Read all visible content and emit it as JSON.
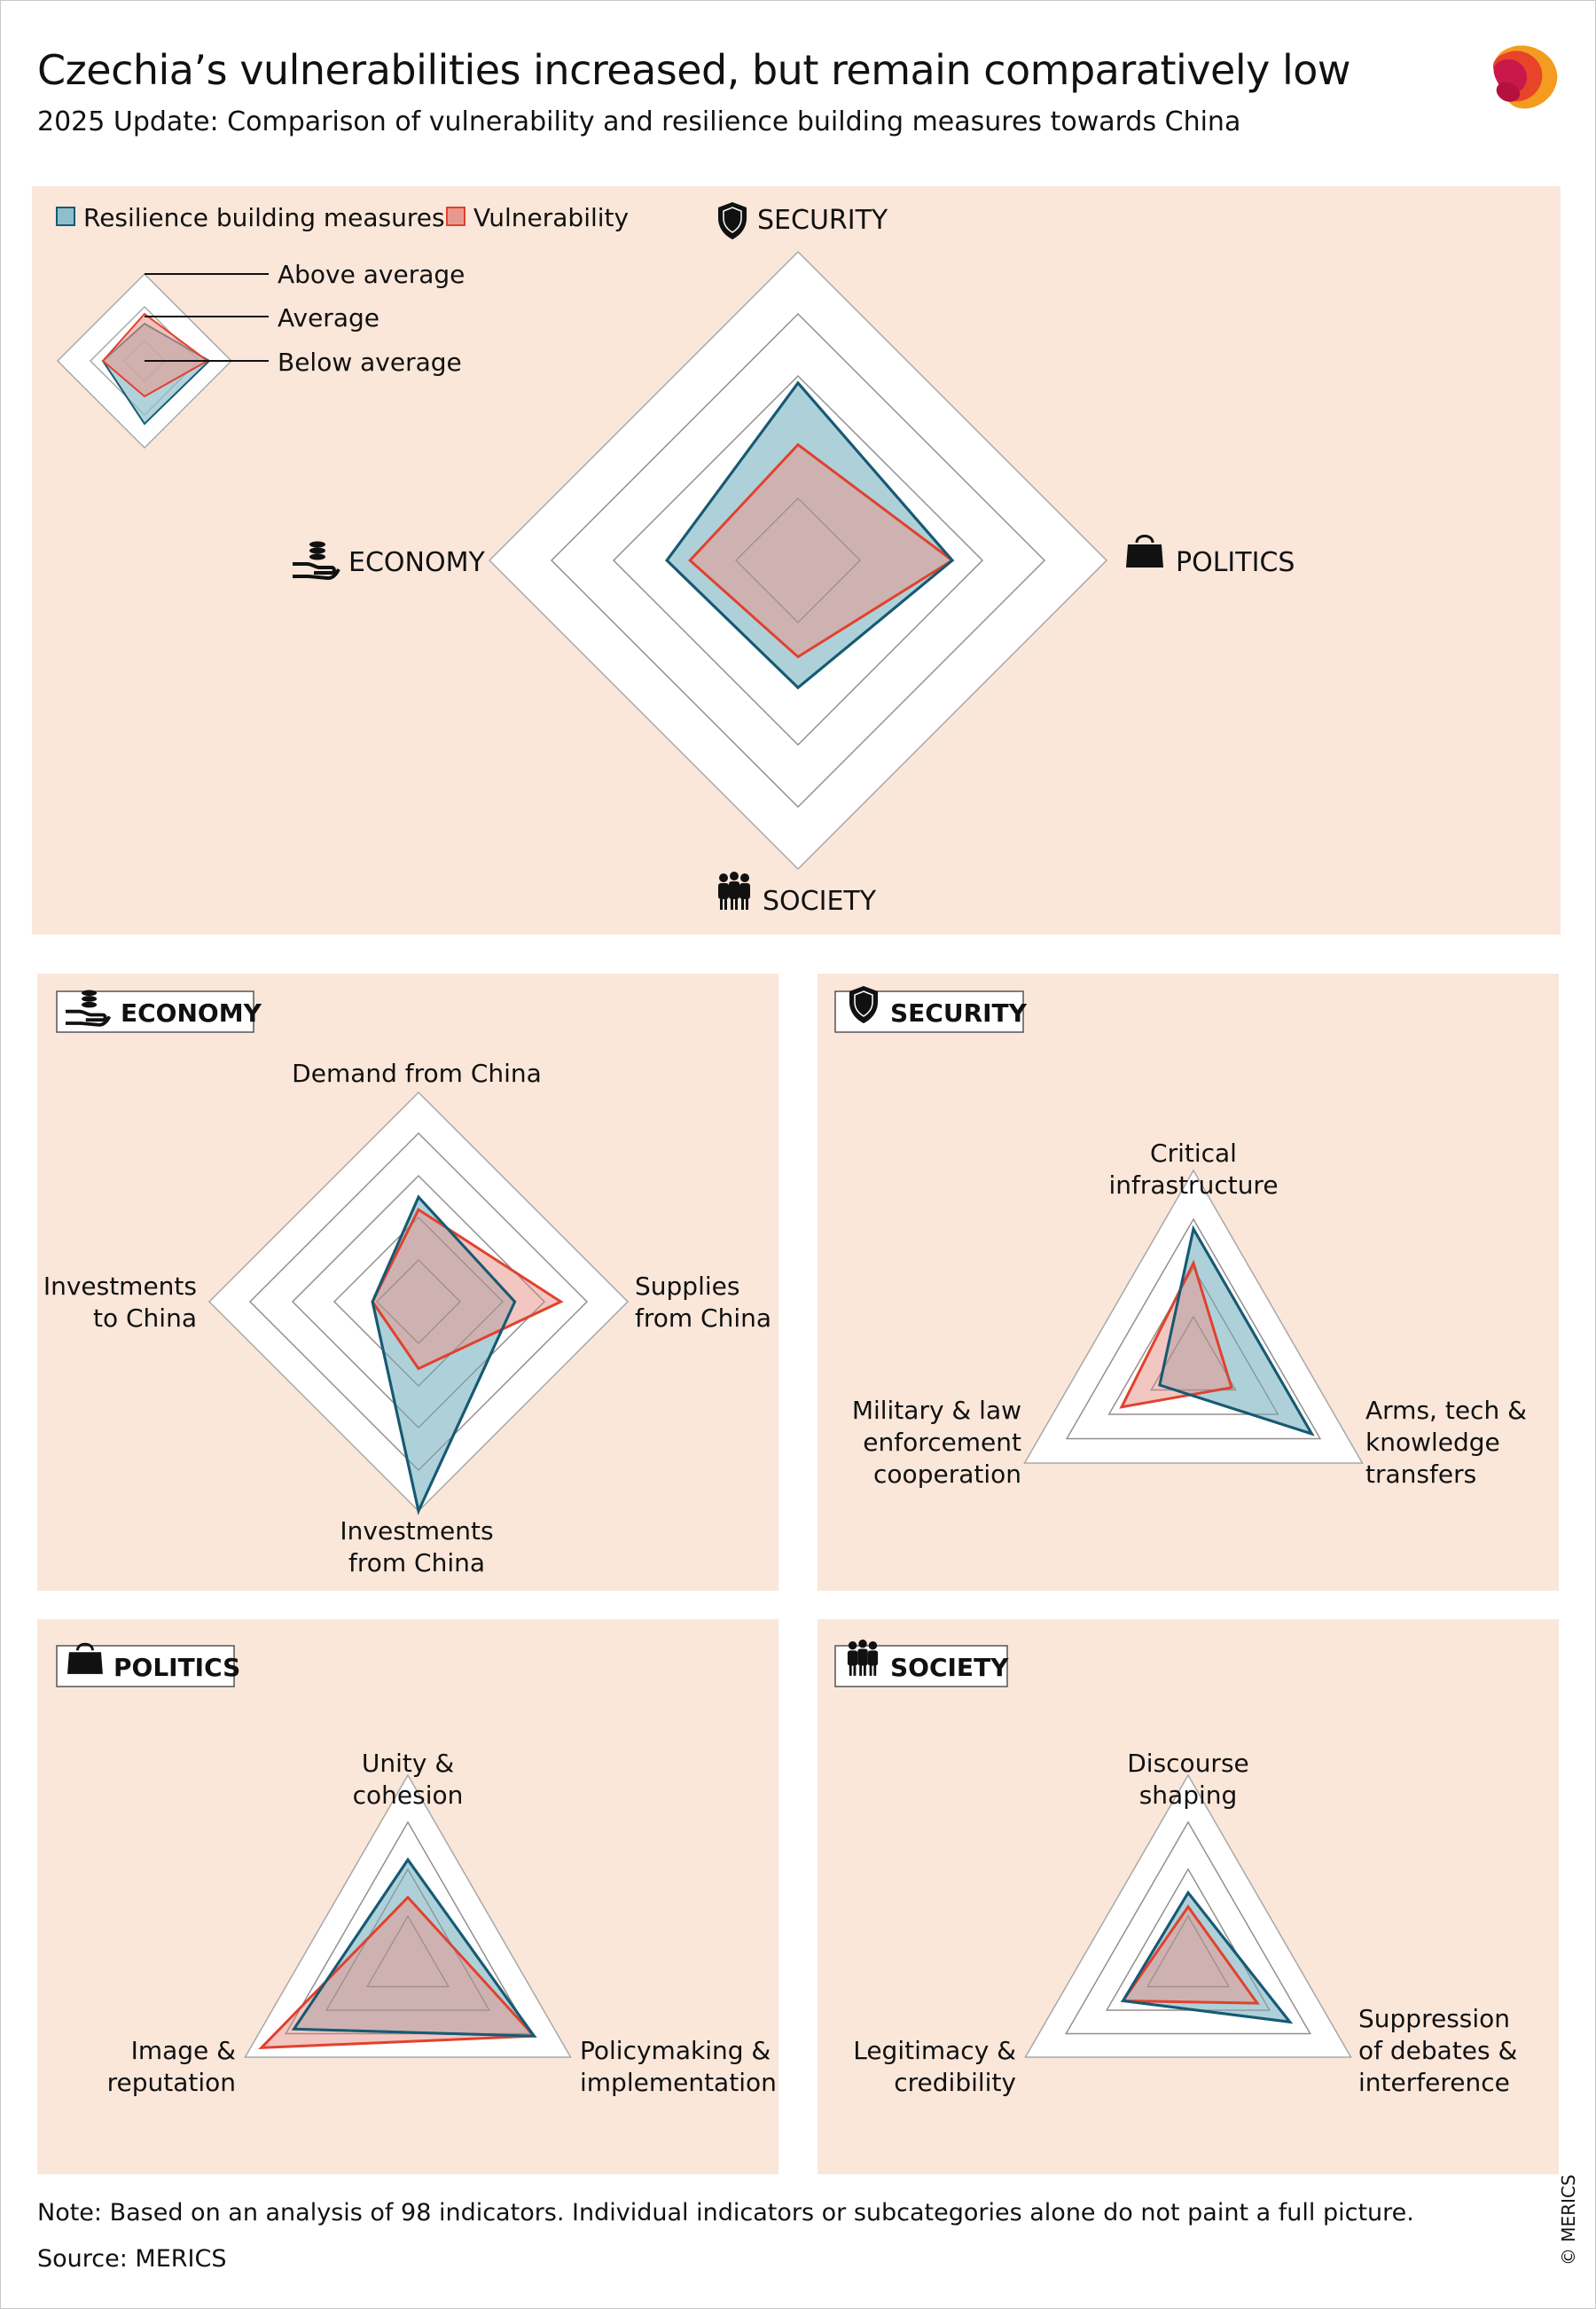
{
  "header": {
    "title": "Czechia’s vulnerabilities increased, but remain comparatively low",
    "subtitle": "2025 Update: Comparison of vulnerability and resilience building measures towards China"
  },
  "legend": {
    "resilience": "Resilience building measures",
    "vulnerability": "Vulnerability",
    "levels": [
      "Above average",
      "Average",
      "Below average"
    ]
  },
  "colors": {
    "panel_bg": "#fae7da",
    "resilience_fill": "#8fbfcb",
    "resilience_stroke": "#175a73",
    "vulnerability_fill": "#e8998f",
    "vulnerability_stroke": "#e2412e",
    "ring": "#a8a8a8"
  },
  "icons": {
    "security": "shield-icon",
    "politics": "handbag-icon",
    "society": "people-group-icon",
    "economy": "hand-coins-icon"
  },
  "footer": {
    "note": "Note: Based on an analysis of 98 indicators. Individual indicators or subcategories alone do not paint a full picture.",
    "source": "Source: MERICS",
    "copyright": "© MERICS"
  },
  "chart_data": [
    {
      "type": "radar",
      "id": "overview",
      "scale": [
        0,
        4
      ],
      "axes": [
        "SECURITY",
        "POLITICS",
        "SOCIETY",
        "ECONOMY"
      ],
      "series": [
        {
          "name": "Resilience building measures",
          "values": [
            2.3,
            2.0,
            1.65,
            1.7
          ]
        },
        {
          "name": "Vulnerability",
          "values": [
            1.5,
            2.0,
            1.25,
            1.4
          ]
        }
      ]
    },
    {
      "type": "radar",
      "id": "economy",
      "title": "ECONOMY",
      "scale": [
        0,
        5
      ],
      "axes": [
        "Demand from China",
        "Supplies from China",
        "Investments from China",
        "Investments to China"
      ],
      "series": [
        {
          "name": "Resilience building measures",
          "values": [
            2.5,
            2.3,
            5.0,
            1.1
          ]
        },
        {
          "name": "Vulnerability",
          "values": [
            2.2,
            3.4,
            1.6,
            1.1
          ]
        }
      ]
    },
    {
      "type": "radar",
      "id": "security",
      "title": "SECURITY",
      "scale": [
        0,
        4
      ],
      "axes": [
        "Critical infrastructure",
        "Arms, tech & knowledge transfers",
        "Military & law enforcement cooperation"
      ],
      "series": [
        {
          "name": "Resilience building measures",
          "values": [
            2.8,
            2.8,
            0.8
          ]
        },
        {
          "name": "Vulnerability",
          "values": [
            2.1,
            0.9,
            1.7
          ]
        }
      ]
    },
    {
      "type": "radar",
      "id": "politics",
      "title": "POLITICS",
      "scale": [
        0,
        4
      ],
      "axes": [
        "Unity & cohesion",
        "Policymaking & implementation",
        "Image & reputation"
      ],
      "series": [
        {
          "name": "Resilience building measures",
          "values": [
            2.2,
            3.1,
            2.8
          ]
        },
        {
          "name": "Vulnerability",
          "values": [
            1.4,
            3.1,
            3.6
          ]
        }
      ]
    },
    {
      "type": "radar",
      "id": "society",
      "title": "SOCIETY",
      "scale": [
        0,
        4
      ],
      "axes": [
        "Discourse shaping",
        "Suppression of debates & interference",
        "Legitimacy & credibility"
      ],
      "series": [
        {
          "name": "Resilience building measures",
          "values": [
            1.5,
            2.5,
            1.6
          ]
        },
        {
          "name": "Vulnerability",
          "values": [
            1.2,
            1.7,
            1.6
          ]
        }
      ]
    }
  ]
}
